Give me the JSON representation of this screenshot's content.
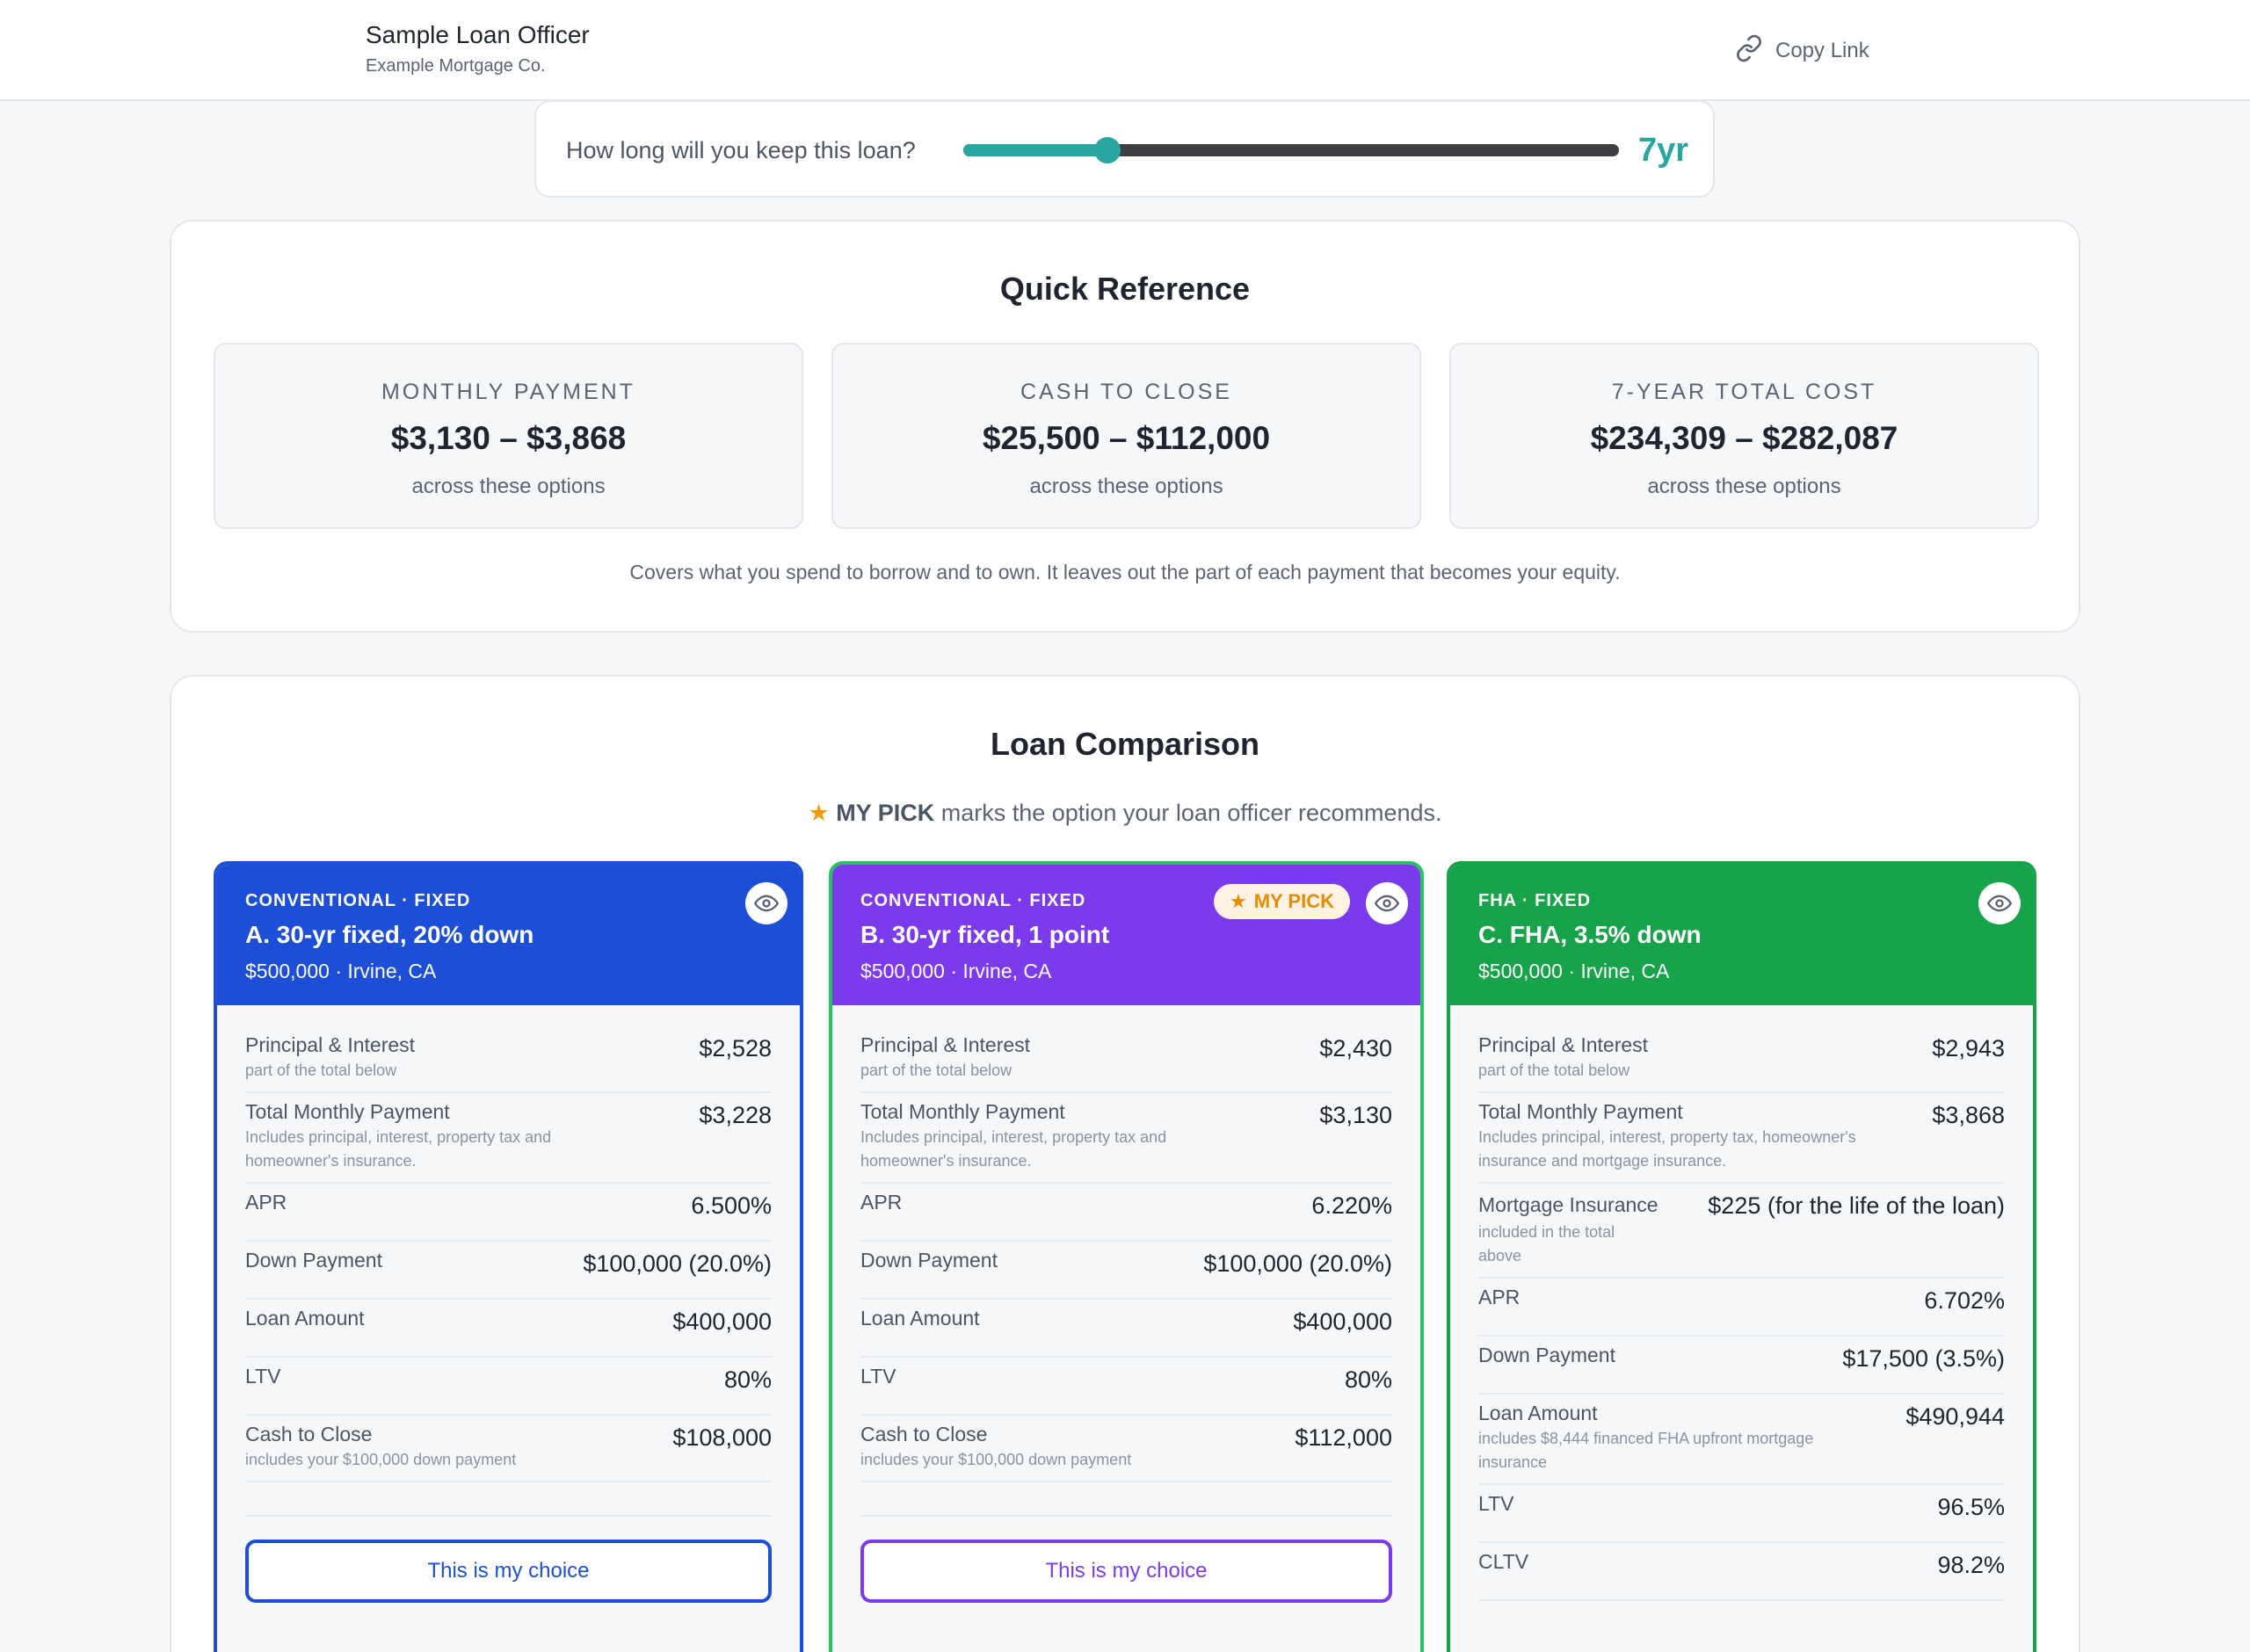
{
  "header": {
    "officer_name": "Sample Loan Officer",
    "company": "Example Mortgage Co.",
    "copy_link": "Copy Link"
  },
  "keep": {
    "question": "How long will you keep this loan?",
    "value_label": "7yr",
    "slider_fraction": 0.22
  },
  "quick_reference": {
    "title": "Quick Reference",
    "cards": [
      {
        "label": "MONTHLY PAYMENT",
        "value": "$3,130 – $3,868",
        "sub": "across these options"
      },
      {
        "label": "CASH TO CLOSE",
        "value": "$25,500 – $112,000",
        "sub": "across these options"
      },
      {
        "label": "7-YEAR TOTAL COST",
        "value": "$234,309 – $282,087",
        "sub": "across these options"
      }
    ],
    "note": "Covers what you spend to borrow and to own. It leaves out the part of each payment that becomes your equity."
  },
  "loan_comparison": {
    "title": "Loan Comparison",
    "legend_star": "★",
    "legend_bold": "MY PICK",
    "legend_rest": " marks the option your loan officer recommends.",
    "my_pick_badge": "MY PICK",
    "choice_label": "This is my choice",
    "loans": [
      {
        "tag": "CONVENTIONAL · FIXED",
        "name": "A. 30-yr fixed, 20% down",
        "location": "$500,000 · Irvine, CA",
        "rows": [
          {
            "label": "Principal & Interest",
            "hint": "part of the total below",
            "value": "$2,528"
          },
          {
            "label": "Total Monthly Payment",
            "hint": "Includes principal, interest, property tax and homeowner's insurance.",
            "value": "$3,228"
          },
          {
            "label": "APR",
            "hint": "",
            "value": "6.500%"
          },
          {
            "label": "Down Payment",
            "hint": "",
            "value": "$100,000 (20.0%)"
          },
          {
            "label": "Loan Amount",
            "hint": "",
            "value": "$400,000"
          },
          {
            "label": "LTV",
            "hint": "",
            "value": "80%"
          },
          {
            "label": "Cash to Close",
            "hint": "includes your $100,000 down payment",
            "value": "$108,000"
          }
        ]
      },
      {
        "tag": "CONVENTIONAL · FIXED",
        "name": "B. 30-yr fixed, 1 point",
        "location": "$500,000 · Irvine, CA",
        "rows": [
          {
            "label": "Principal & Interest",
            "hint": "part of the total below",
            "value": "$2,430"
          },
          {
            "label": "Total Monthly Payment",
            "hint": "Includes principal, interest, property tax and homeowner's insurance.",
            "value": "$3,130"
          },
          {
            "label": "APR",
            "hint": "",
            "value": "6.220%"
          },
          {
            "label": "Down Payment",
            "hint": "",
            "value": "$100,000 (20.0%)"
          },
          {
            "label": "Loan Amount",
            "hint": "",
            "value": "$400,000"
          },
          {
            "label": "LTV",
            "hint": "",
            "value": "80%"
          },
          {
            "label": "Cash to Close",
            "hint": "includes your $100,000 down payment",
            "value": "$112,000"
          }
        ]
      },
      {
        "tag": "FHA · FIXED",
        "name": "C. FHA, 3.5% down",
        "location": "$500,000 · Irvine, CA",
        "rows": [
          {
            "label": "Principal & Interest",
            "hint": "part of the total below",
            "value": "$2,943"
          },
          {
            "label": "Total Monthly Payment",
            "hint": "Includes principal, interest, property tax, homeowner's insurance and mortgage insurance.",
            "value": "$3,868"
          },
          {
            "label": "Mortgage Insurance",
            "hint": "included in the total above",
            "value": "$225 (for the life of the loan)"
          },
          {
            "label": "APR",
            "hint": "",
            "value": "6.702%"
          },
          {
            "label": "Down Payment",
            "hint": "",
            "value": "$17,500 (3.5%)"
          },
          {
            "label": "Loan Amount",
            "hint": "includes $8,444 financed FHA upfront mortgage insurance",
            "value": "$490,944"
          },
          {
            "label": "LTV",
            "hint": "",
            "value": "96.5%"
          },
          {
            "label": "CLTV",
            "hint": "",
            "value": "98.2%"
          }
        ]
      }
    ]
  }
}
